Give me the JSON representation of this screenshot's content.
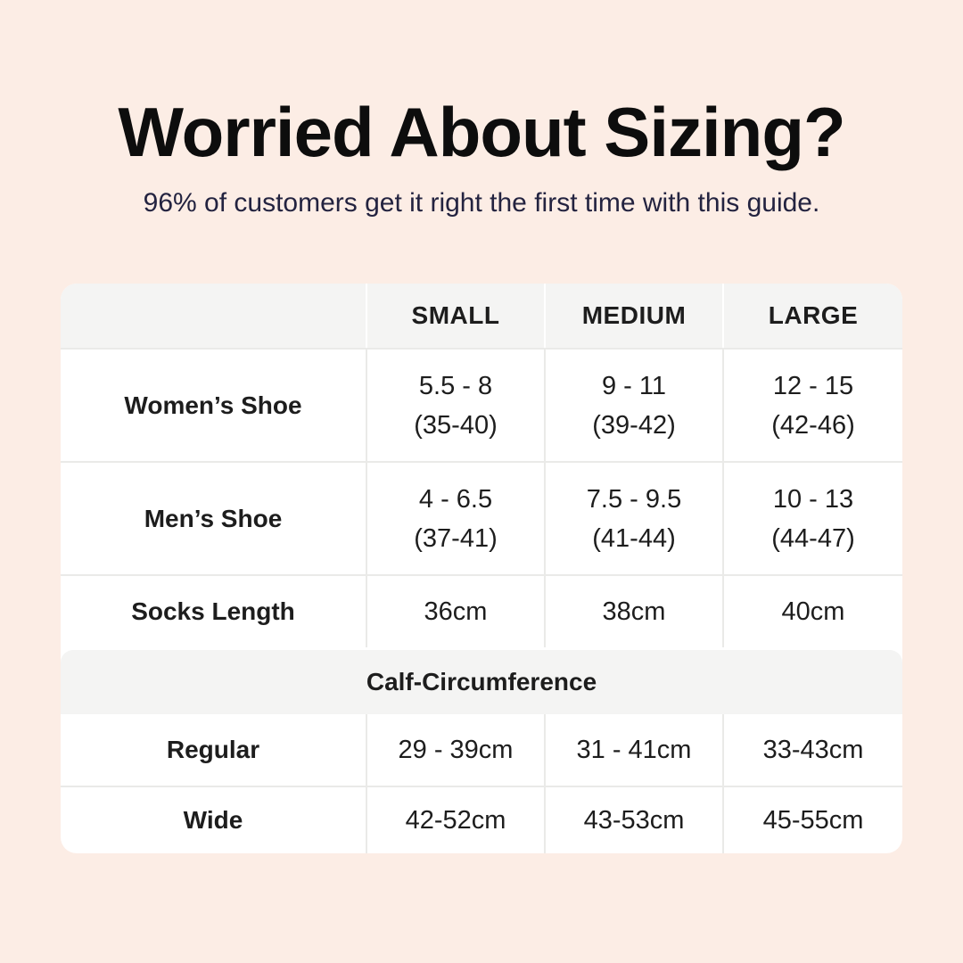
{
  "colors": {
    "page-bg": "#fcede5",
    "table-bg": "#ffffff",
    "band-bg": "#f4f4f3",
    "divider": "#eaeae8",
    "title-color": "#0d0d0d",
    "subtitle-color": "#232340",
    "text-color": "#1d1d1d"
  },
  "chart_data": {
    "type": "table",
    "title": "Worried About Sizing?",
    "subtitle": "96% of customers get it right the first time with this guide.",
    "columns": [
      "",
      "SMALL",
      "MEDIUM",
      "LARGE"
    ],
    "shoe_rows": [
      {
        "label": "Women’s Shoe",
        "cells": [
          {
            "top": "5.5 - 8",
            "bottom": "(35-40)"
          },
          {
            "top": "9 - 11",
            "bottom": "(39-42)"
          },
          {
            "top": "12 - 15",
            "bottom": "(42-46)"
          }
        ]
      },
      {
        "label": "Men’s Shoe",
        "cells": [
          {
            "top": "4 - 6.5",
            "bottom": "(37-41)"
          },
          {
            "top": "7.5 - 9.5",
            "bottom": "(41-44)"
          },
          {
            "top": "10 - 13",
            "bottom": "(44-47)"
          }
        ]
      }
    ],
    "socks_row": {
      "label": "Socks Length",
      "values": [
        "36cm",
        "38cm",
        "40cm"
      ]
    },
    "calf_section": {
      "header": "Calf-Circumference",
      "rows": [
        {
          "label": "Regular",
          "values": [
            "29 - 39cm",
            "31 - 41cm",
            "33-43cm"
          ]
        },
        {
          "label": "Wide",
          "values": [
            "42-52cm",
            "43-53cm",
            "45-55cm"
          ]
        }
      ]
    }
  }
}
